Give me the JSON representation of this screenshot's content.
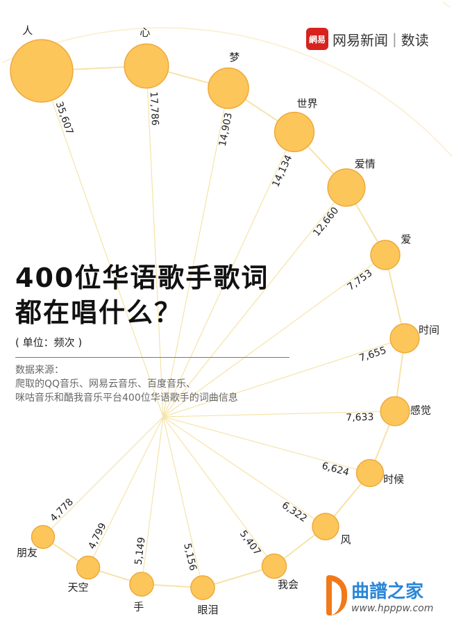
{
  "header": {
    "logo_mark": "網易",
    "logo_text": "网易新闻",
    "logo_sep": "|",
    "logo_section": "数读"
  },
  "title_line1": "400位华语歌手歌词",
  "title_line2": "都在唱什么？",
  "unit": "( 单位：频次 )",
  "source_label": "数据来源：",
  "source_line1": "爬取的QQ音乐、网易云音乐、百度音乐、",
  "source_line2": "咪咕音乐和酷我音乐平台400位华语歌手的词曲信息",
  "watermark": {
    "name": "曲譜之家",
    "url": "www.hpppw.com"
  },
  "colors": {
    "bubble": "#fcc65a",
    "bubble_stroke": "#f0a83a",
    "spoke": "#f6e3a8",
    "ring": "#fbf1d6"
  },
  "chart_data": {
    "type": "radial-bubble",
    "words": [
      "人",
      "心",
      "梦",
      "世界",
      "爱情",
      "爱",
      "时间",
      "感觉",
      "时候",
      "风",
      "我会",
      "眼泪",
      "手",
      "天空",
      "朋友"
    ],
    "values": [
      35607,
      17786,
      14903,
      14134,
      12660,
      7753,
      7655,
      7633,
      6624,
      6322,
      5407,
      5156,
      5149,
      4799,
      4778
    ],
    "labels": [
      "35,607",
      "17,786",
      "14,903",
      "14,134",
      "12,660",
      "7,753",
      "7,655",
      "7,633",
      "6,624",
      "6,322",
      "5,407",
      "5,156",
      "5,149",
      "4,799",
      "4,778"
    ]
  }
}
